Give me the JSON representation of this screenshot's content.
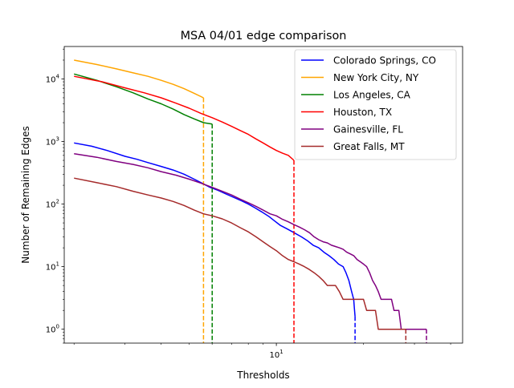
{
  "chart_data": {
    "type": "line",
    "title": "MSA 04/01 edge comparison",
    "xlabel": "Thresholds",
    "ylabel": "Number of Remaining Edges",
    "xscale": "log",
    "yscale": "log",
    "xlim": [
      1.85,
      44
    ],
    "ylim": [
      0.6,
      33000
    ],
    "x_tick_labels": [
      {
        "value": 10,
        "base": "10",
        "exp": "1"
      }
    ],
    "y_tick_labels": [
      {
        "value": 1,
        "base": "10",
        "exp": "0"
      },
      {
        "value": 10,
        "base": "10",
        "exp": "1"
      },
      {
        "value": 100,
        "base": "10",
        "exp": "2"
      },
      {
        "value": 1000,
        "base": "10",
        "exp": "3"
      },
      {
        "value": 10000,
        "base": "10",
        "exp": "4"
      }
    ],
    "grid": false,
    "legend_position": "top-right",
    "series": [
      {
        "name": "Colorado Springs, CO",
        "color": "#0000ff",
        "points": [
          [
            2.0,
            950
          ],
          [
            2.3,
            840
          ],
          [
            2.6,
            720
          ],
          [
            3.0,
            580
          ],
          [
            3.3,
            520
          ],
          [
            3.6,
            460
          ],
          [
            4.0,
            400
          ],
          [
            4.4,
            350
          ],
          [
            4.8,
            300
          ],
          [
            5.2,
            250
          ],
          [
            5.6,
            210
          ],
          [
            5.9,
            185
          ],
          [
            6.3,
            165
          ],
          [
            6.7,
            145
          ],
          [
            7.2,
            125
          ],
          [
            7.6,
            112
          ],
          [
            8.0,
            100
          ],
          [
            8.4,
            88
          ],
          [
            8.9,
            75
          ],
          [
            9.4,
            64
          ],
          [
            9.8,
            55
          ],
          [
            10.3,
            46
          ],
          [
            10.9,
            40
          ],
          [
            11.5,
            35
          ],
          [
            12.2,
            30
          ],
          [
            12.8,
            26
          ],
          [
            13.4,
            22
          ],
          [
            14.0,
            20
          ],
          [
            14.6,
            17
          ],
          [
            15.2,
            15
          ],
          [
            15.8,
            13
          ],
          [
            16.4,
            11
          ],
          [
            17.0,
            10
          ],
          [
            17.4,
            8
          ],
          [
            17.8,
            6
          ],
          [
            18.2,
            4
          ],
          [
            18.5,
            3
          ],
          [
            18.6,
            2.2
          ],
          [
            18.7,
            1.6
          ]
        ],
        "cutoff_x": 18.7
      },
      {
        "name": "New York City, NY",
        "color": "#ffa500",
        "points": [
          [
            2.0,
            20000
          ],
          [
            2.4,
            17000
          ],
          [
            2.8,
            14500
          ],
          [
            3.2,
            12500
          ],
          [
            3.6,
            11000
          ],
          [
            4.0,
            9500
          ],
          [
            4.4,
            8200
          ],
          [
            4.8,
            7000
          ],
          [
            5.2,
            5900
          ],
          [
            5.6,
            5000
          ]
        ],
        "cutoff_x": 5.6
      },
      {
        "name": "Los Angeles, CA",
        "color": "#008000",
        "points": [
          [
            2.0,
            12000
          ],
          [
            2.4,
            9500
          ],
          [
            2.8,
            7500
          ],
          [
            3.2,
            6000
          ],
          [
            3.6,
            4800
          ],
          [
            4.0,
            4000
          ],
          [
            4.4,
            3300
          ],
          [
            4.8,
            2700
          ],
          [
            5.2,
            2300
          ],
          [
            5.6,
            2000
          ],
          [
            6.0,
            1900
          ]
        ],
        "cutoff_x": 6.0
      },
      {
        "name": "Houston, TX",
        "color": "#ff0000",
        "points": [
          [
            2.0,
            11000
          ],
          [
            2.5,
            9000
          ],
          [
            3.0,
            7200
          ],
          [
            3.5,
            6000
          ],
          [
            4.0,
            5000
          ],
          [
            4.5,
            4100
          ],
          [
            5.0,
            3400
          ],
          [
            5.5,
            2800
          ],
          [
            6.0,
            2400
          ],
          [
            6.5,
            2050
          ],
          [
            7.0,
            1750
          ],
          [
            7.5,
            1500
          ],
          [
            8.0,
            1300
          ],
          [
            8.5,
            1100
          ],
          [
            9.0,
            950
          ],
          [
            9.5,
            820
          ],
          [
            10.0,
            720
          ],
          [
            10.5,
            650
          ],
          [
            11.0,
            600
          ],
          [
            11.5,
            500
          ]
        ],
        "cutoff_x": 11.5
      },
      {
        "name": "Gainesville, FL",
        "color": "#800080",
        "points": [
          [
            2.0,
            640
          ],
          [
            2.4,
            560
          ],
          [
            2.8,
            480
          ],
          [
            3.2,
            430
          ],
          [
            3.6,
            380
          ],
          [
            4.0,
            330
          ],
          [
            4.5,
            290
          ],
          [
            5.0,
            250
          ],
          [
            5.5,
            215
          ],
          [
            6.0,
            185
          ],
          [
            6.5,
            160
          ],
          [
            7.0,
            140
          ],
          [
            7.5,
            120
          ],
          [
            8.0,
            105
          ],
          [
            8.5,
            92
          ],
          [
            9.0,
            80
          ],
          [
            9.5,
            70
          ],
          [
            10.0,
            65
          ],
          [
            10.5,
            57
          ],
          [
            11.0,
            52
          ],
          [
            11.5,
            47
          ],
          [
            12.0,
            43
          ],
          [
            12.5,
            39
          ],
          [
            13.0,
            35
          ],
          [
            13.5,
            30
          ],
          [
            14.0,
            27
          ],
          [
            14.5,
            25
          ],
          [
            15.0,
            24
          ],
          [
            15.5,
            22
          ],
          [
            16.0,
            21
          ],
          [
            16.5,
            20
          ],
          [
            17.0,
            19
          ],
          [
            17.5,
            17
          ],
          [
            18.0,
            16
          ],
          [
            18.5,
            15
          ],
          [
            19.0,
            13
          ],
          [
            19.5,
            12
          ],
          [
            20.0,
            11
          ],
          [
            20.5,
            10
          ],
          [
            21.0,
            8
          ],
          [
            21.5,
            6
          ],
          [
            22.0,
            5
          ],
          [
            22.5,
            4
          ],
          [
            23.0,
            3
          ],
          [
            25.0,
            3
          ],
          [
            25.5,
            2
          ],
          [
            26.5,
            2
          ],
          [
            27.0,
            1
          ],
          [
            33.0,
            1
          ]
        ],
        "cutoff_x": 33.0
      },
      {
        "name": "Great Falls, MT",
        "color": "#a52a2a",
        "points": [
          [
            2.0,
            260
          ],
          [
            2.4,
            220
          ],
          [
            2.8,
            190
          ],
          [
            3.2,
            160
          ],
          [
            3.6,
            140
          ],
          [
            4.0,
            125
          ],
          [
            4.4,
            110
          ],
          [
            4.8,
            95
          ],
          [
            5.2,
            80
          ],
          [
            5.6,
            70
          ],
          [
            6.0,
            65
          ],
          [
            6.5,
            58
          ],
          [
            7.0,
            50
          ],
          [
            7.5,
            42
          ],
          [
            8.0,
            36
          ],
          [
            8.5,
            30
          ],
          [
            9.0,
            25
          ],
          [
            9.5,
            21
          ],
          [
            10.0,
            18
          ],
          [
            10.5,
            15
          ],
          [
            11.0,
            13
          ],
          [
            11.5,
            12
          ],
          [
            12.0,
            11
          ],
          [
            12.5,
            10
          ],
          [
            13.0,
            9
          ],
          [
            13.5,
            8
          ],
          [
            14.0,
            7
          ],
          [
            14.5,
            6
          ],
          [
            15.0,
            5
          ],
          [
            16.0,
            5
          ],
          [
            16.5,
            4
          ],
          [
            17.0,
            3
          ],
          [
            20.0,
            3
          ],
          [
            20.5,
            2
          ],
          [
            22.0,
            2
          ],
          [
            22.5,
            1
          ],
          [
            28.0,
            1
          ]
        ],
        "cutoff_x": 28.0
      }
    ]
  }
}
